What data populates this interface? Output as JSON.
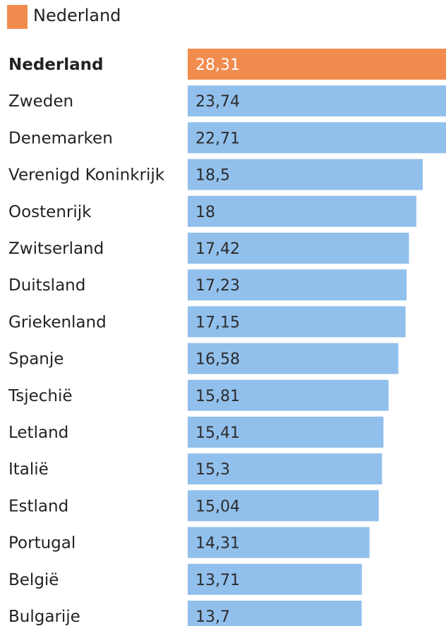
{
  "chart_data": {
    "type": "bar",
    "orientation": "horizontal",
    "legend": {
      "position": "top-left",
      "entries": [
        {
          "label": "Nederland",
          "color": "#F28C4E"
        }
      ]
    },
    "highlight_category": "Nederland",
    "highlight_color": "#F28C4E",
    "default_color": "#92C0EC",
    "categories": [
      "Nederland",
      "Zweden",
      "Denemarken",
      "Verenigd Koninkrijk",
      "Oostenrijk",
      "Zwitserland",
      "Duitsland",
      "Griekenland",
      "Spanje",
      "Tsjechië",
      "Letland",
      "Italië",
      "Estland",
      "Portugal",
      "België",
      "Bulgarije"
    ],
    "values": [
      28.31,
      23.74,
      22.71,
      18.5,
      18,
      17.42,
      17.23,
      17.15,
      16.58,
      15.81,
      15.41,
      15.3,
      15.04,
      14.31,
      13.71,
      13.7
    ],
    "value_labels": [
      "28,31",
      "23,74",
      "22,71",
      "18,5",
      "18",
      "17,42",
      "17,23",
      "17,15",
      "16,58",
      "15,81",
      "15,41",
      "15,3",
      "15,04",
      "14,31",
      "13,71",
      "13,7"
    ],
    "xlim": [
      0,
      21
    ],
    "grid": false
  }
}
